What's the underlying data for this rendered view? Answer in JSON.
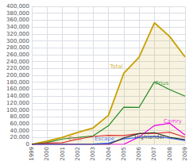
{
  "chart_data": {
    "type": "line",
    "x": [
      1999,
      2000,
      2001,
      2002,
      2003,
      2004,
      2005,
      2006,
      2007,
      2008,
      2009
    ],
    "series": [
      {
        "name": "Total",
        "type": "area",
        "color": "#c8a000",
        "values": [
          470,
          9350,
          20282,
          35000,
          47600,
          84199,
          205828,
          252636,
          352274,
          312386,
          253509
        ]
      },
      {
        "name": "Prius",
        "type": "line",
        "color": "#228822",
        "values": [
          0,
          5562,
          15556,
          20119,
          24627,
          53991,
          107897,
          106971,
          181221,
          158620,
          139682
        ]
      },
      {
        "name": "Camry",
        "type": "line",
        "color": "#ee00ee",
        "values": [
          0,
          0,
          0,
          0,
          0,
          0,
          0,
          21527,
          54495,
          61009,
          26983
        ]
      },
      {
        "name": "Civic",
        "type": "line",
        "color": "#dd3333",
        "values": [
          0,
          3788,
          4726,
          14897,
          23000,
          26190,
          25376,
          31253,
          31610,
          35314,
          20631
        ]
      },
      {
        "name": "Escape",
        "type": "line",
        "color": "#3366ff",
        "values": [
          0,
          0,
          0,
          0,
          875,
          3713,
          16015,
          20149,
          23295,
          17779,
          10996
        ]
      },
      {
        "name": "Highlander",
        "type": "line",
        "color": "#333333",
        "values": [
          0,
          0,
          0,
          0,
          0,
          0,
          18786,
          31485,
          33901,
          20348,
          13698
        ]
      }
    ],
    "xlim": [
      1999,
      2009
    ],
    "xticks": [
      1999,
      2000,
      2001,
      2002,
      2003,
      2004,
      2005,
      2006,
      2007,
      2008,
      2009
    ],
    "ylim": [
      0,
      400000
    ],
    "yticks": [
      0,
      {
        "value": 20000,
        "label": "20,000"
      },
      {
        "value": 40000,
        "label": "40,000"
      },
      {
        "value": 60000,
        "label": "60,000"
      },
      {
        "value": 80000,
        "label": "80,000"
      },
      {
        "value": 100000,
        "label": "100,000"
      },
      {
        "value": 120000,
        "label": "120,000"
      },
      {
        "value": 140000,
        "label": "140,000"
      },
      {
        "value": 160000,
        "label": "160,000"
      },
      {
        "value": 180000,
        "label": "180,000"
      },
      {
        "value": 200000,
        "label": "200,000"
      },
      {
        "value": 220000,
        "label": "220,000"
      },
      {
        "value": 240000,
        "label": "240,000"
      },
      {
        "value": 260000,
        "label": "260,000"
      },
      {
        "value": 280000,
        "label": "280,000"
      },
      {
        "value": 300000,
        "label": "300,000"
      },
      {
        "value": 320000,
        "label": "320,000"
      },
      {
        "value": 340000,
        "label": "340,000"
      },
      {
        "value": 360000,
        "label": "360,000"
      },
      {
        "value": 380000,
        "label": "380,000"
      },
      {
        "value": 400000,
        "label": "400,000"
      }
    ],
    "grid": true,
    "annotations": [
      {
        "text": "Total",
        "x": 2004.1,
        "y": 218000,
        "color": "#c8a000"
      },
      {
        "text": "Prius",
        "x": 2007.05,
        "y": 168000,
        "color": "#228822"
      },
      {
        "text": "Camry",
        "x": 2007.6,
        "y": 58000,
        "color": "#ee00ee"
      },
      {
        "text": "Civic",
        "x": 2001.4,
        "y": 9000,
        "color": "#dd3333"
      },
      {
        "text": "Escape",
        "x": 2003.1,
        "y": 8000,
        "color": "#3366ff"
      },
      {
        "text": "Highlander",
        "x": 2005.7,
        "y": 12500,
        "color": "#333333"
      }
    ]
  }
}
